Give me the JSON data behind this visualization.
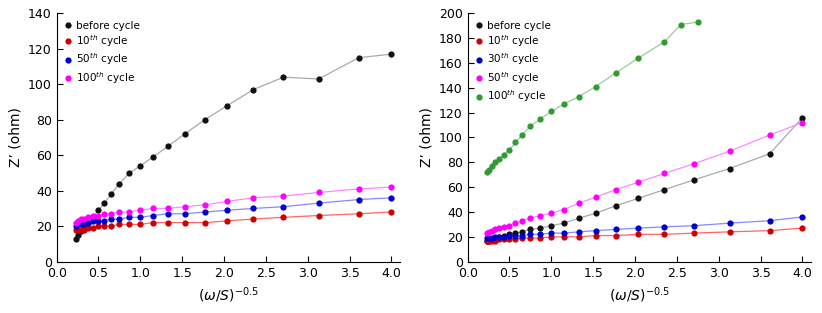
{
  "left": {
    "ylabel": "Z’ (ohm)",
    "xlim": [
      0.1,
      4.1
    ],
    "ylim": [
      0,
      140
    ],
    "yticks": [
      0,
      20,
      40,
      60,
      80,
      100,
      120,
      140
    ],
    "xticks": [
      0.0,
      0.5,
      1.0,
      1.5,
      2.0,
      2.5,
      3.0,
      3.5,
      4.0
    ],
    "series": [
      {
        "label": "before cycle",
        "line_color": "#aaaaaa",
        "dot_color": "#111111",
        "x": [
          0.23,
          0.26,
          0.29,
          0.33,
          0.38,
          0.43,
          0.5,
          0.57,
          0.65,
          0.75,
          0.87,
          1.0,
          1.15,
          1.33,
          1.53,
          1.77,
          2.04,
          2.35,
          2.71,
          3.13,
          3.61,
          4.0
        ],
        "y": [
          13,
          15,
          17,
          19,
          22,
          25,
          29,
          33,
          38,
          44,
          50,
          54,
          59,
          65,
          72,
          80,
          88,
          97,
          104,
          103,
          115,
          117
        ]
      },
      {
        "label": "10$^{th}$ cycle",
        "line_color": "#ff6666",
        "dot_color": "#cc0000",
        "x": [
          0.23,
          0.26,
          0.29,
          0.33,
          0.38,
          0.43,
          0.5,
          0.57,
          0.65,
          0.75,
          0.87,
          1.0,
          1.15,
          1.33,
          1.53,
          1.77,
          2.04,
          2.35,
          2.71,
          3.13,
          3.61,
          4.0
        ],
        "y": [
          18,
          18,
          18,
          18,
          19,
          19,
          20,
          20,
          20,
          21,
          21,
          21,
          22,
          22,
          22,
          22,
          23,
          24,
          25,
          26,
          27,
          28
        ]
      },
      {
        "label": "50$^{th}$ cycle",
        "line_color": "#8888ff",
        "dot_color": "#0000cc",
        "x": [
          0.23,
          0.26,
          0.29,
          0.33,
          0.38,
          0.43,
          0.5,
          0.57,
          0.65,
          0.75,
          0.87,
          1.0,
          1.15,
          1.33,
          1.53,
          1.77,
          2.04,
          2.35,
          2.71,
          3.13,
          3.61,
          4.0
        ],
        "y": [
          20,
          21,
          21,
          22,
          22,
          23,
          23,
          23,
          24,
          24,
          25,
          25,
          26,
          27,
          27,
          28,
          29,
          30,
          31,
          33,
          35,
          36
        ]
      },
      {
        "label": "100$^{th}$ cycle",
        "line_color": "#ff88ff",
        "dot_color": "#ff00ff",
        "x": [
          0.23,
          0.26,
          0.29,
          0.33,
          0.38,
          0.43,
          0.5,
          0.57,
          0.65,
          0.75,
          0.87,
          1.0,
          1.15,
          1.33,
          1.53,
          1.77,
          2.04,
          2.35,
          2.71,
          3.13,
          3.61,
          4.0
        ],
        "y": [
          22,
          23,
          24,
          24,
          25,
          26,
          26,
          27,
          27,
          28,
          28,
          29,
          30,
          30,
          31,
          32,
          34,
          36,
          37,
          39,
          41,
          42
        ]
      }
    ]
  },
  "right": {
    "ylabel": "Z’ (ohm)",
    "xlim": [
      0.1,
      4.1
    ],
    "ylim": [
      0,
      200
    ],
    "yticks": [
      0,
      20,
      40,
      60,
      80,
      100,
      120,
      140,
      160,
      180,
      200
    ],
    "xticks": [
      0.0,
      0.5,
      1.0,
      1.5,
      2.0,
      2.5,
      3.0,
      3.5,
      4.0
    ],
    "series": [
      {
        "label": "before cycle",
        "line_color": "#aaaaaa",
        "dot_color": "#111111",
        "x": [
          0.23,
          0.26,
          0.29,
          0.33,
          0.38,
          0.43,
          0.5,
          0.57,
          0.65,
          0.75,
          0.87,
          1.0,
          1.15,
          1.33,
          1.53,
          1.77,
          2.04,
          2.35,
          2.71,
          3.13,
          3.61,
          4.0
        ],
        "y": [
          17,
          17,
          18,
          19,
          20,
          21,
          22,
          23,
          24,
          26,
          27,
          29,
          31,
          35,
          39,
          45,
          51,
          58,
          66,
          75,
          87,
          116
        ]
      },
      {
        "label": "10$^{th}$ cycle",
        "line_color": "#ff6666",
        "dot_color": "#cc0000",
        "x": [
          0.23,
          0.26,
          0.29,
          0.33,
          0.38,
          0.43,
          0.5,
          0.57,
          0.65,
          0.75,
          0.87,
          1.0,
          1.15,
          1.33,
          1.53,
          1.77,
          2.04,
          2.35,
          2.71,
          3.13,
          3.61,
          4.0
        ],
        "y": [
          17,
          17,
          17,
          17,
          18,
          18,
          18,
          18,
          19,
          19,
          19,
          20,
          20,
          20,
          21,
          21,
          22,
          22,
          23,
          24,
          25,
          27
        ]
      },
      {
        "label": "30$^{th}$ cycle",
        "line_color": "#8888ff",
        "dot_color": "#0000cc",
        "x": [
          0.23,
          0.26,
          0.29,
          0.33,
          0.38,
          0.43,
          0.5,
          0.57,
          0.65,
          0.75,
          0.87,
          1.0,
          1.15,
          1.33,
          1.53,
          1.77,
          2.04,
          2.35,
          2.71,
          3.13,
          3.61,
          4.0
        ],
        "y": [
          19,
          19,
          19,
          20,
          20,
          20,
          21,
          21,
          21,
          22,
          22,
          23,
          23,
          24,
          25,
          26,
          27,
          28,
          29,
          31,
          33,
          36
        ]
      },
      {
        "label": "50$^{th}$ cycle",
        "line_color": "#ff88ff",
        "dot_color": "#ff00ff",
        "x": [
          0.23,
          0.26,
          0.29,
          0.33,
          0.38,
          0.43,
          0.5,
          0.57,
          0.65,
          0.75,
          0.87,
          1.0,
          1.15,
          1.33,
          1.53,
          1.77,
          2.04,
          2.35,
          2.71,
          3.13,
          3.61,
          4.0
        ],
        "y": [
          23,
          24,
          25,
          26,
          27,
          28,
          29,
          31,
          33,
          35,
          37,
          39,
          42,
          47,
          52,
          58,
          64,
          71,
          79,
          89,
          102,
          112
        ]
      },
      {
        "label": "100$^{th}$ cycle",
        "line_color": "#99cc99",
        "dot_color": "#339933",
        "x": [
          0.23,
          0.26,
          0.29,
          0.33,
          0.38,
          0.43,
          0.5,
          0.57,
          0.65,
          0.75,
          0.87,
          1.0,
          1.15,
          1.33,
          1.53,
          1.77,
          2.04,
          2.35,
          2.55,
          2.75
        ],
        "y": [
          72,
          74,
          77,
          80,
          83,
          86,
          90,
          96,
          102,
          109,
          115,
          121,
          127,
          133,
          141,
          152,
          164,
          177,
          191,
          193
        ]
      }
    ]
  }
}
